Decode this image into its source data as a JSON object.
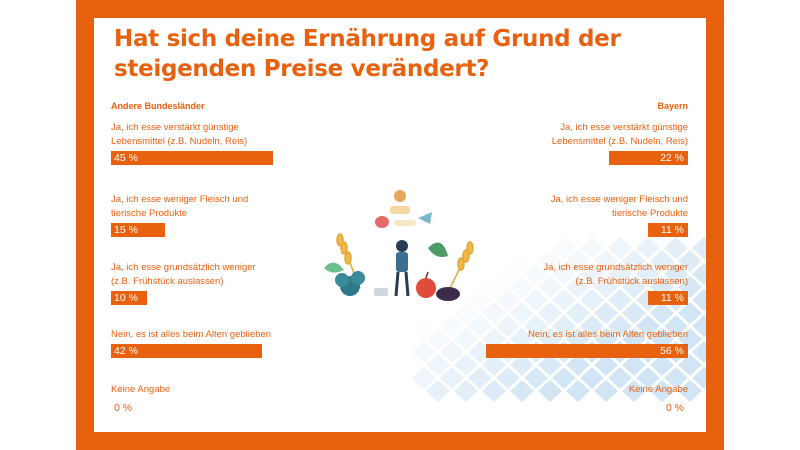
{
  "title_line1": "Hat sich deine Ernährung auf Grund der",
  "title_line2": "steigenden Preise verändert?",
  "colors": {
    "accent": "#e8610f",
    "pattern": "#c9e0f2"
  },
  "chart_data": {
    "type": "bar",
    "orientation": "horizontal",
    "categories": [
      "Ja, ich esse verstärkt günstige Lebensmittel (z.B. Nudeln, Reis)",
      "Ja, ich esse weniger Fleisch und tierische Produkte",
      "Ja, ich esse grundsätzlich weniger (z.B. Frühstück auslassen)",
      "Nein, es ist alles beim Alten geblieben",
      "Keine Angabe"
    ],
    "left_labels": [
      [
        "Ja, ich esse verstärkt günstige",
        "Lebensmittel (z.B. Nudeln, Reis)"
      ],
      [
        "Ja, ich esse weniger Fleisch und",
        "tierische Produkte"
      ],
      [
        "Ja, ich esse grundsätzlich weniger",
        "(z.B. Frühstück auslassen)"
      ],
      [
        "Nein, es ist alles beim Alten geblieben"
      ],
      [
        "Keine Angabe"
      ]
    ],
    "right_labels": [
      [
        "Ja, ich esse verstärkt günstige",
        "Lebensmittel (z.B. Nudeln, Reis)"
      ],
      [
        "Ja, ich esse weniger Fleisch und",
        "tierische Produkte"
      ],
      [
        "Ja, ich esse grundsätzlich weniger",
        "(z.B. Frühstück auslassen)"
      ],
      [
        "Nein, es ist alles beim Alten geblieben"
      ],
      [
        "Keine Angabe"
      ]
    ],
    "series": [
      {
        "name": "Andere Bundesländer",
        "values": [
          45,
          15,
          10,
          42,
          0
        ],
        "labels": [
          "45 %",
          "15 %",
          "10 %",
          "42 %",
          "0 %"
        ]
      },
      {
        "name": "Bayern",
        "values": [
          22,
          11,
          11,
          56,
          0
        ],
        "labels": [
          "22 %",
          "11 %",
          "11 %",
          "56 %",
          "0 %"
        ]
      }
    ],
    "unit": "%"
  }
}
